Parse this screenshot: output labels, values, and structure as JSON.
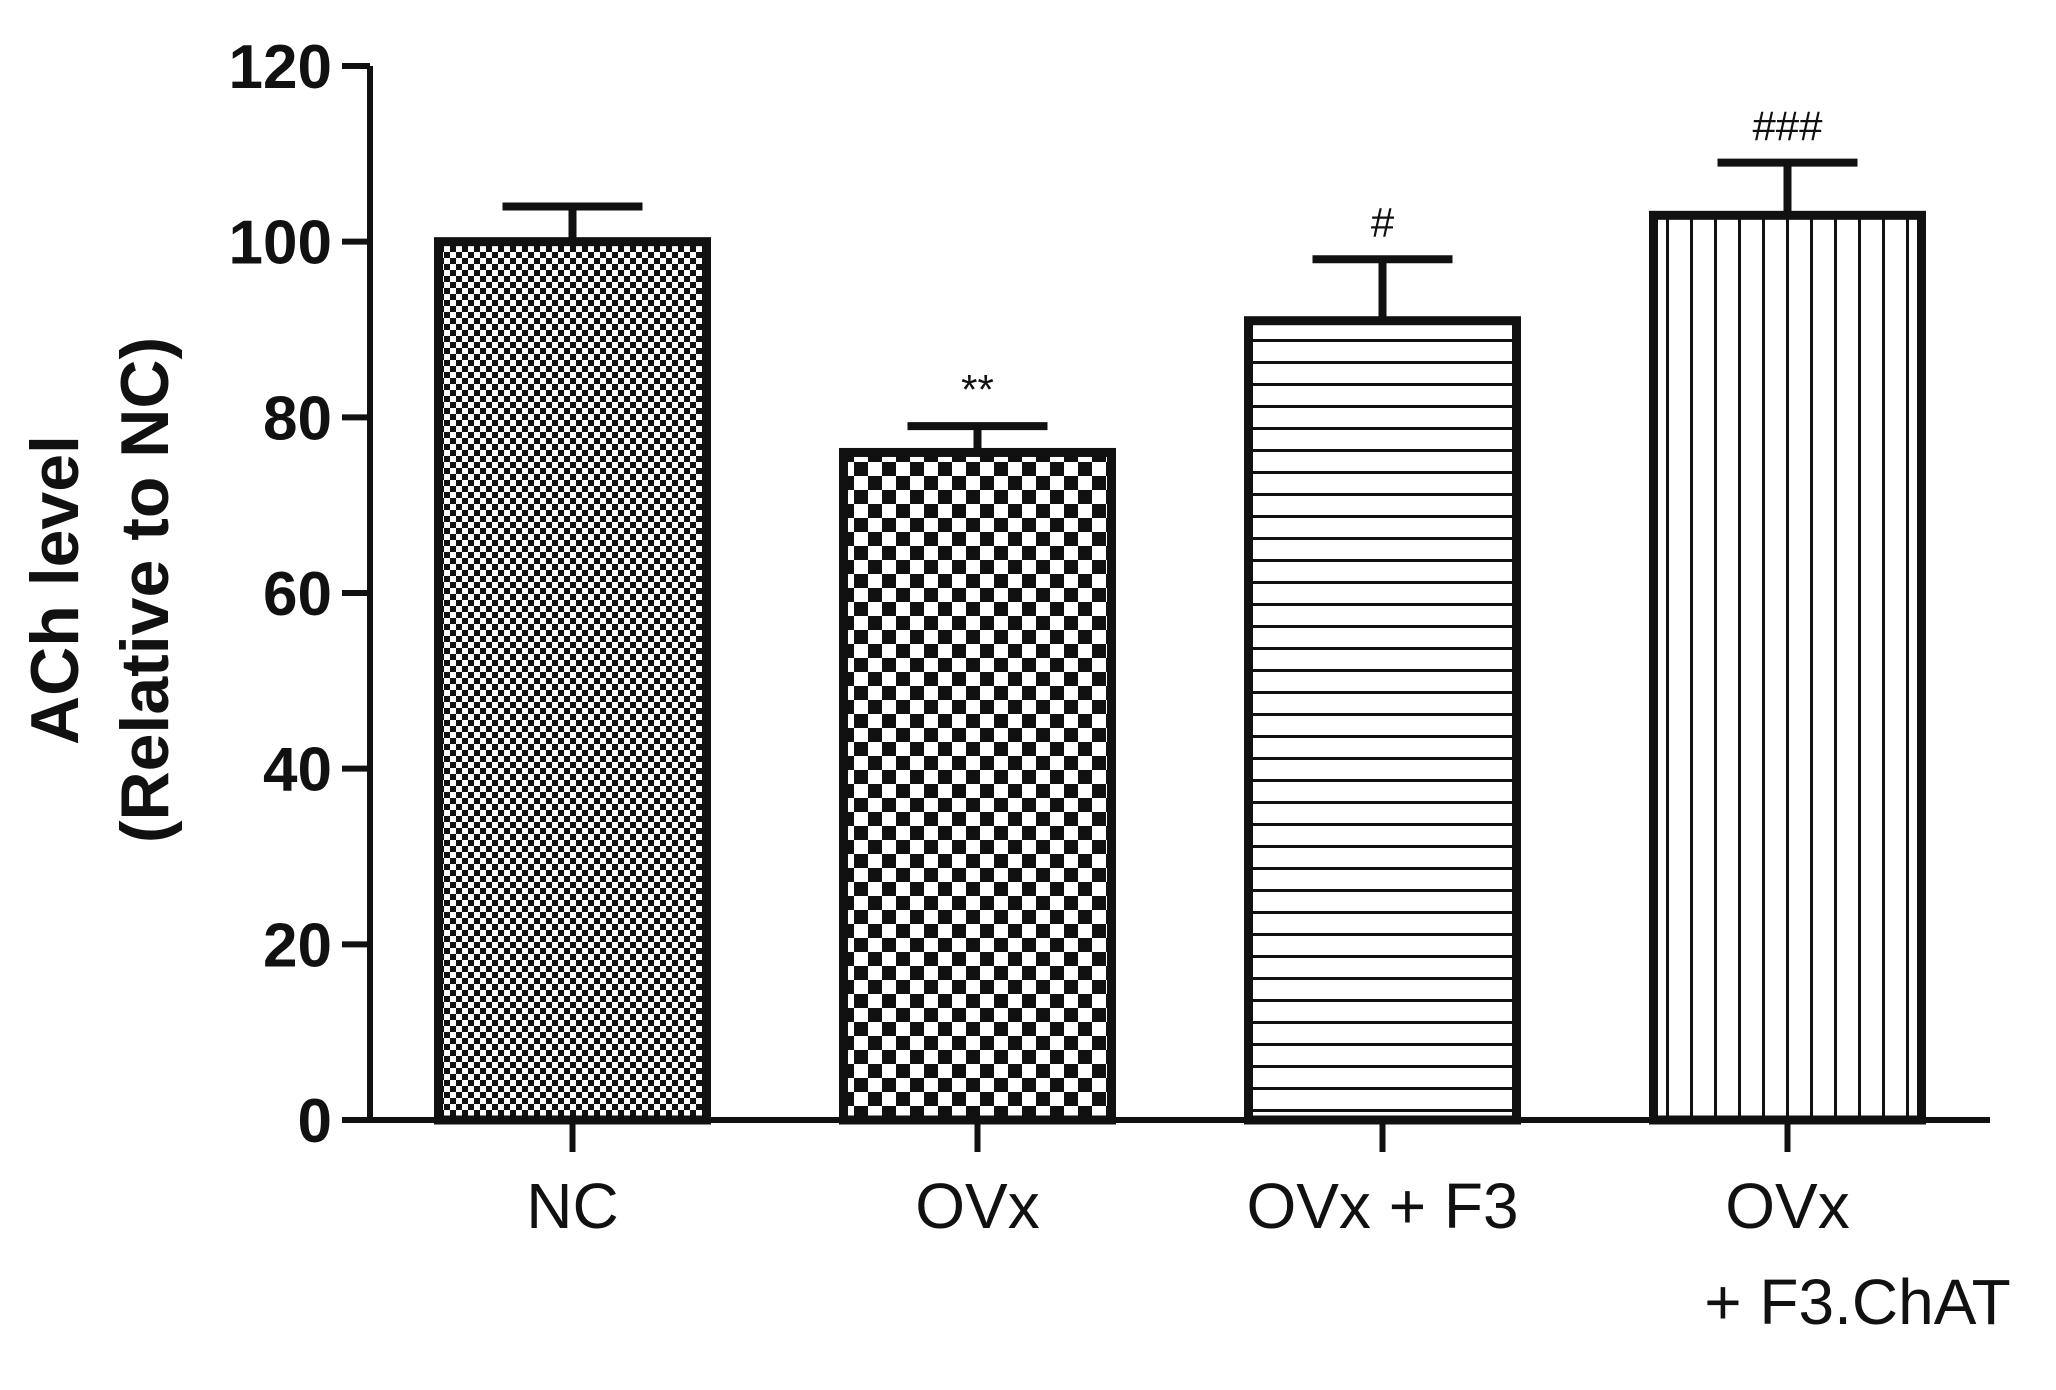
{
  "chart_data": {
    "type": "bar",
    "ylabel_line1": "ACh level",
    "ylabel_line2": "(Relative to NC)",
    "ylim": [
      0,
      120
    ],
    "yticks": [
      0,
      20,
      40,
      60,
      80,
      100,
      120
    ],
    "ytick_labels": [
      "0",
      "20",
      "40",
      "60",
      "80",
      "100",
      "120"
    ],
    "categories": [
      "NC",
      "OVx",
      "OVx + F3",
      "OVx\n+ F3.ChAT"
    ],
    "category_lines": [
      [
        "NC"
      ],
      [
        "OVx"
      ],
      [
        "OVx + F3"
      ],
      [
        "OVx",
        "+ F3.ChAT"
      ]
    ],
    "values": [
      100,
      76,
      91,
      103
    ],
    "errors": [
      4,
      3,
      7,
      6
    ],
    "significance": [
      "",
      "**",
      "#",
      "###"
    ],
    "patterns": [
      "fine-checker",
      "coarse-checker",
      "horizontal-lines",
      "vertical-lines"
    ],
    "colors": {
      "bar_stroke": "#111111",
      "fill": "#111111",
      "background": "#ffffff"
    }
  }
}
